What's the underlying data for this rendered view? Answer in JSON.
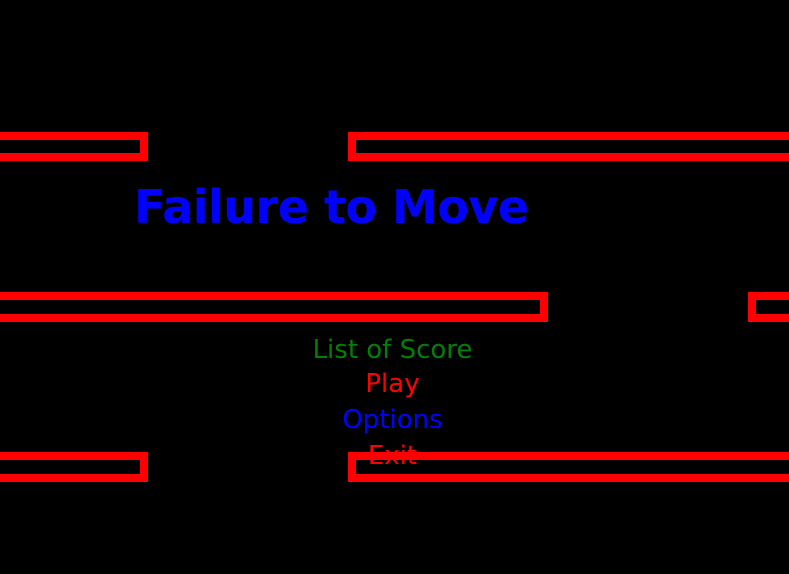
{
  "game": {
    "title": "Failure to Move",
    "colors": {
      "background": "#000000",
      "title": "#0000ff",
      "bars": "#ff0000"
    }
  },
  "menu": {
    "items": [
      {
        "label": "List of Score",
        "color": "#007f00"
      },
      {
        "label": "Play",
        "color": "#ff0000"
      },
      {
        "label": "Options",
        "color": "#0000ff"
      },
      {
        "label": "Exit",
        "color": "#ff0000"
      }
    ]
  }
}
